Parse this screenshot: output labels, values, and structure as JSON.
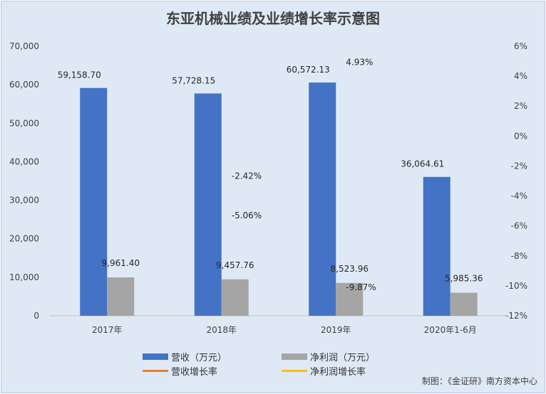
{
  "chart_data": {
    "type": "bar",
    "title": "东亚机械业绩及业绩增长率示意图",
    "categories": [
      "2017年",
      "2018年",
      "2019年",
      "2020年1-6月"
    ],
    "series": [
      {
        "name": "营收（万元）",
        "kind": "bar",
        "axis": "left",
        "color": "#4472c4",
        "values": [
          59158.7,
          57728.15,
          60572.13,
          36064.61
        ],
        "labels": [
          "59,158.70",
          "57,728.15",
          "60,572.13",
          "36,064.61"
        ]
      },
      {
        "name": "净利润（万元）",
        "kind": "bar",
        "axis": "left",
        "color": "#a5a5a5",
        "values": [
          9961.4,
          9457.76,
          8523.96,
          5985.36
        ],
        "labels": [
          "9,961.40",
          "9,457.76",
          "8,523.96",
          "5,985.36"
        ]
      },
      {
        "name": "营收增长率",
        "kind": "line",
        "axis": "right",
        "color": "#ed7d31",
        "values": [
          null,
          -2.42,
          4.93,
          null
        ],
        "labels": [
          null,
          "-2.42%",
          "4.93%",
          null
        ]
      },
      {
        "name": "净利润增长率",
        "kind": "line",
        "axis": "right",
        "color": "#ffc000",
        "values": [
          null,
          -5.06,
          -9.87,
          null
        ],
        "labels": [
          null,
          "-5.06%",
          "-9.87%",
          null
        ]
      }
    ],
    "ylim_left": [
      0,
      70000
    ],
    "yticks_left": [
      "0",
      "10,000",
      "20,000",
      "30,000",
      "40,000",
      "50,000",
      "60,000",
      "70,000"
    ],
    "ylim_right": [
      -12,
      6
    ],
    "yticks_right": [
      "-12%",
      "-10%",
      "-8%",
      "-6%",
      "-4%",
      "-2%",
      "0%",
      "2%",
      "4%",
      "6%"
    ],
    "grid": false,
    "legend_position": "bottom"
  },
  "source_note": "制图：《金证研》南方资本中心"
}
